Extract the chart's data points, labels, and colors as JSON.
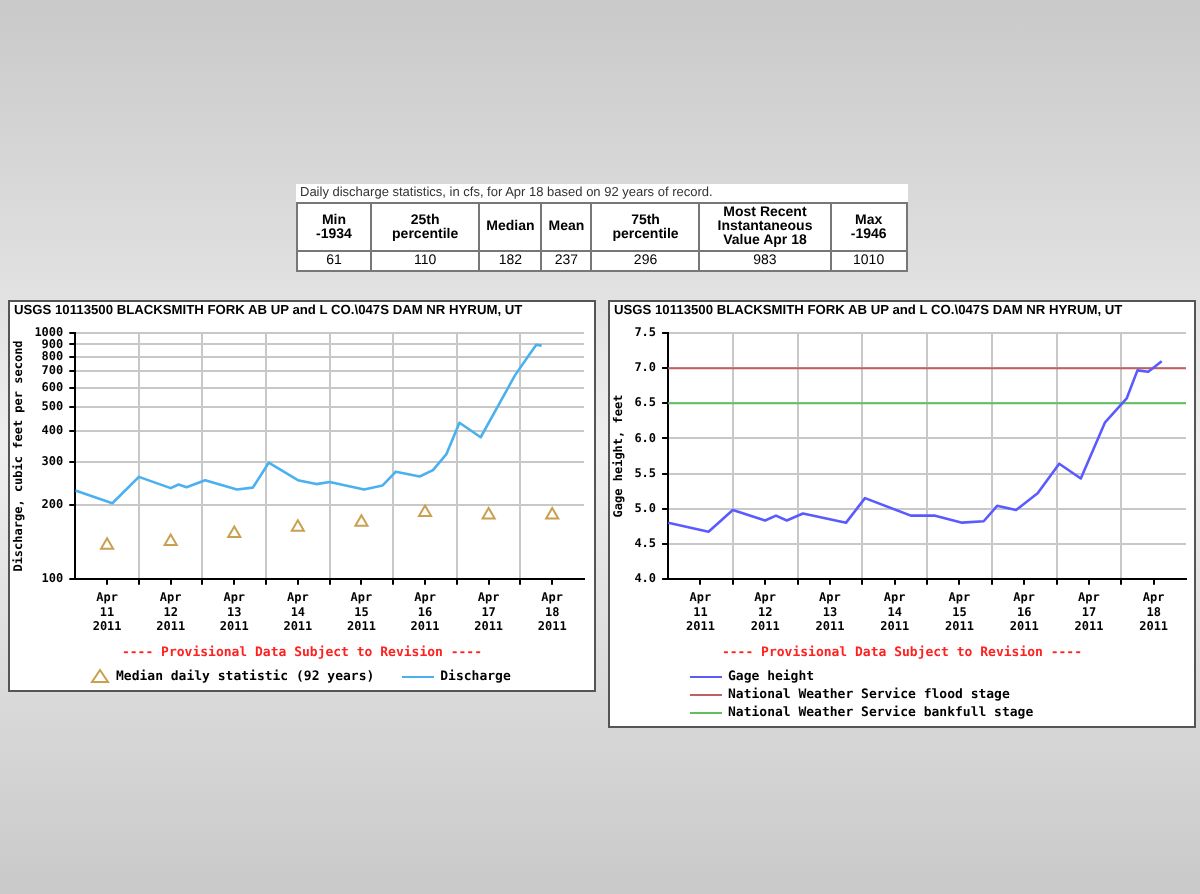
{
  "chart_data": [
    {
      "type": "other",
      "title": "Daily discharge statistics, in cfs, for Apr 18 based on 92 years of record.",
      "categories": [
        "Min -1934",
        "25th percentile",
        "Median",
        "Mean",
        "75th percentile",
        "Most Recent Instantaneous Value Apr 18",
        "Max -1946"
      ],
      "values": [
        61,
        110,
        182,
        237,
        296,
        983,
        1010
      ],
      "data_labels": true
    },
    {
      "type": "line",
      "title": "USGS 10113500 BLACKSMITH FORK AB UP and L CO.\\047S DAM NR HYRUM, UT",
      "ylabel": "Discharge, cubic feet per second",
      "log": "y",
      "grid": true,
      "legend": "bottom",
      "annotations": [
        "---- Provisional Data Subject to Revision ----"
      ],
      "xlim": [
        "2011-04-11T00:00",
        "2011-04-19T00:00"
      ],
      "xticks": [
        {
          "value": "2011-04-11T12:00",
          "label": "Apr 11 2011"
        },
        {
          "value": "2011-04-12T00:00",
          "label": null
        },
        {
          "value": "2011-04-12T12:00",
          "label": "Apr 12 2011"
        },
        {
          "value": "2011-04-13T00:00",
          "label": null
        },
        {
          "value": "2011-04-13T12:00",
          "label": "Apr 13 2011"
        },
        {
          "value": "2011-04-14T00:00",
          "label": null
        },
        {
          "value": "2011-04-14T12:00",
          "label": "Apr 14 2011"
        },
        {
          "value": "2011-04-15T00:00",
          "label": null
        },
        {
          "value": "2011-04-15T12:00",
          "label": "Apr 15 2011"
        },
        {
          "value": "2011-04-16T00:00",
          "label": null
        },
        {
          "value": "2011-04-16T12:00",
          "label": "Apr 16 2011"
        },
        {
          "value": "2011-04-17T00:00",
          "label": null
        },
        {
          "value": "2011-04-17T12:00",
          "label": "Apr 17 2011"
        },
        {
          "value": "2011-04-18T00:00",
          "label": null
        },
        {
          "value": "2011-04-18T12:00",
          "label": "Apr 18 2011"
        }
      ],
      "ylim": [
        100,
        1000
      ],
      "yticks": [
        100,
        200,
        300,
        400,
        500,
        600,
        700,
        800,
        900,
        1000
      ],
      "series": [
        {
          "name": "Median daily statistic (92 years)",
          "type": "scatter",
          "marker": "triangle",
          "color": "#c8a050",
          "x": [
            "2011-04-11T12:00",
            "2011-04-12T12:00",
            "2011-04-13T12:00",
            "2011-04-14T12:00",
            "2011-04-15T12:00",
            "2011-04-16T12:00",
            "2011-04-17T12:00",
            "2011-04-18T12:00"
          ],
          "values": [
            137,
            142,
            153,
            162,
            170,
            186,
            182,
            182
          ]
        },
        {
          "name": "Discharge",
          "type": "line",
          "marker": "none",
          "color": "#4ab0f0",
          "x": [
            "2011-04-11T00:00",
            "2011-04-11T14:00",
            "2011-04-12T00:00",
            "2011-04-12T12:00",
            "2011-04-12T15:00",
            "2011-04-12T18:00",
            "2011-04-13T01:00",
            "2011-04-13T13:00",
            "2011-04-13T19:00",
            "2011-04-14T01:00",
            "2011-04-14T12:00",
            "2011-04-14T19:00",
            "2011-04-15T00:00",
            "2011-04-15T13:00",
            "2011-04-15T20:00",
            "2011-04-16T01:00",
            "2011-04-16T10:00",
            "2011-04-16T15:00",
            "2011-04-16T20:00",
            "2011-04-17T01:00",
            "2011-04-17T09:00",
            "2011-04-17T14:00",
            "2011-04-17T22:00",
            "2011-04-18T03:00",
            "2011-04-18T06:00",
            "2011-04-18T08:00"
          ],
          "values": [
            229,
            203,
            260,
            234,
            242,
            236,
            252,
            231,
            235,
            297,
            252,
            243,
            248,
            231,
            240,
            273,
            261,
            277,
            321,
            432,
            377,
            472,
            675,
            807,
            898,
            890
          ]
        }
      ]
    },
    {
      "type": "line",
      "title": "USGS 10113500 BLACKSMITH FORK AB UP and L CO.\\047S DAM NR HYRUM, UT",
      "ylabel": "Gage height, feet",
      "grid": true,
      "legend": "bottom",
      "annotations": [
        "---- Provisional Data Subject to Revision ----"
      ],
      "xlim": [
        "2011-04-11T00:00",
        "2011-04-19T00:00"
      ],
      "xticks": [
        {
          "value": "2011-04-11T12:00",
          "label": "Apr 11 2011"
        },
        {
          "value": "2011-04-12T00:00",
          "label": null
        },
        {
          "value": "2011-04-12T12:00",
          "label": "Apr 12 2011"
        },
        {
          "value": "2011-04-13T00:00",
          "label": null
        },
        {
          "value": "2011-04-13T12:00",
          "label": "Apr 13 2011"
        },
        {
          "value": "2011-04-14T00:00",
          "label": null
        },
        {
          "value": "2011-04-14T12:00",
          "label": "Apr 14 2011"
        },
        {
          "value": "2011-04-15T00:00",
          "label": null
        },
        {
          "value": "2011-04-15T12:00",
          "label": "Apr 15 2011"
        },
        {
          "value": "2011-04-16T00:00",
          "label": null
        },
        {
          "value": "2011-04-16T12:00",
          "label": "Apr 16 2011"
        },
        {
          "value": "2011-04-17T00:00",
          "label": null
        },
        {
          "value": "2011-04-17T12:00",
          "label": "Apr 17 2011"
        },
        {
          "value": "2011-04-18T00:00",
          "label": null
        },
        {
          "value": "2011-04-18T12:00",
          "label": "Apr 18 2011"
        }
      ],
      "ylim": [
        4,
        7.5
      ],
      "yticks": [
        {
          "value": 4,
          "label": "4.0"
        },
        {
          "value": 4.5,
          "label": "4.5"
        },
        {
          "value": 5,
          "label": "5.0"
        },
        {
          "value": 5.5,
          "label": "5.5"
        },
        {
          "value": 6,
          "label": "6.0"
        },
        {
          "value": 6.5,
          "label": "6.5"
        },
        {
          "value": 7,
          "label": "7.0"
        },
        {
          "value": 7.5,
          "label": "7.5"
        }
      ],
      "ref_lines": [
        {
          "axis": "y",
          "value": 7,
          "label": "National Weather Service flood stage",
          "color": "#c06060"
        },
        {
          "axis": "y",
          "value": 6.5,
          "label": "National Weather Service bankfull stage",
          "color": "#60c060"
        }
      ],
      "series": [
        {
          "name": "Gage height",
          "type": "line",
          "marker": "none",
          "color": "#5a5aff",
          "x": [
            "2011-04-11T00:00",
            "2011-04-11T15:00",
            "2011-04-12T00:00",
            "2011-04-12T12:00",
            "2011-04-12T16:00",
            "2011-04-12T20:00",
            "2011-04-13T02:00",
            "2011-04-13T18:00",
            "2011-04-14T01:00",
            "2011-04-14T18:00",
            "2011-04-15T03:00",
            "2011-04-15T13:00",
            "2011-04-15T21:00",
            "2011-04-16T02:00",
            "2011-04-16T09:00",
            "2011-04-16T17:00",
            "2011-04-17T01:00",
            "2011-04-17T09:00",
            "2011-04-17T18:00",
            "2011-04-18T02:00",
            "2011-04-18T06:00",
            "2011-04-18T10:00",
            "2011-04-18T15:00"
          ],
          "values": [
            4.8,
            4.67,
            4.98,
            4.83,
            4.9,
            4.83,
            4.93,
            4.8,
            5.15,
            4.9,
            4.9,
            4.8,
            4.82,
            5.04,
            4.98,
            5.22,
            5.64,
            5.43,
            6.23,
            6.57,
            6.97,
            6.95,
            7.1
          ]
        }
      ]
    }
  ]
}
